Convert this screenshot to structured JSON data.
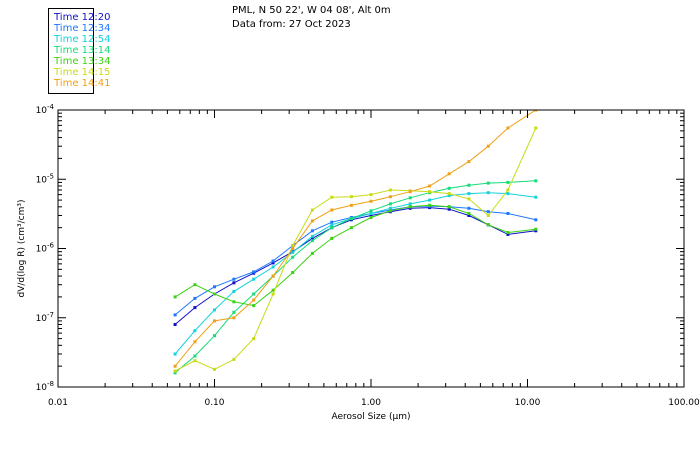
{
  "header": {
    "location": "PML, N 50 22', W 04 08', Alt 0m",
    "date_line": "Data from: 27 Oct 2023"
  },
  "legend": [
    {
      "label": "Time 12:20",
      "color": "#1010c8"
    },
    {
      "label": "Time 12:34",
      "color": "#1e78ff"
    },
    {
      "label": "Time 12:54",
      "color": "#14d2dc"
    },
    {
      "label": "Time 13:14",
      "color": "#14dc78"
    },
    {
      "label": "Time 13:34",
      "color": "#3cd214"
    },
    {
      "label": "Time 14:15",
      "color": "#c8dc14"
    },
    {
      "label": "Time 14:41",
      "color": "#f0a014"
    }
  ],
  "chart_data": {
    "type": "line",
    "xscale": "log",
    "yscale": "log",
    "xlabel": "Aerosol Size (μm)",
    "ylabel": "dV/d(log R) (cm³/cm³)",
    "xlim": [
      0.01,
      100
    ],
    "ylim": [
      1e-08,
      0.0001
    ],
    "x_tick_labels": [
      "0.01",
      "0.10",
      "1.00",
      "10.00",
      "100.00"
    ],
    "x_ticks": [
      0.01,
      0.1,
      1,
      10,
      100
    ],
    "y_ticks": [
      1e-08,
      1e-07,
      1e-06,
      1e-05,
      0.0001
    ],
    "y_tick_mantissa": [
      "10",
      "10",
      "10",
      "10",
      "10"
    ],
    "y_tick_exponent": [
      "-8",
      "-7",
      "-6",
      "-5",
      "-4"
    ],
    "x": [
      0.056,
      0.075,
      0.1,
      0.133,
      0.178,
      0.237,
      0.316,
      0.422,
      0.562,
      0.75,
      1.0,
      1.33,
      1.78,
      2.37,
      3.16,
      4.22,
      5.62,
      7.5,
      11.3
    ],
    "series": [
      {
        "name": "Time 12:20",
        "color": "#1010c8",
        "values": [
          8e-08,
          1.4e-07,
          2.2e-07,
          3.2e-07,
          4.4e-07,
          6.2e-07,
          9e-07,
          1.4e-06,
          2e-06,
          2.6e-06,
          3e-06,
          3.4e-06,
          3.8e-06,
          3.9e-06,
          3.7e-06,
          3e-06,
          2.2e-06,
          1.6e-06,
          1.8e-06
        ]
      },
      {
        "name": "Time 12:34",
        "color": "#1e78ff",
        "values": [
          1.1e-07,
          1.9e-07,
          2.8e-07,
          3.6e-07,
          4.6e-07,
          6.6e-07,
          1.1e-06,
          1.8e-06,
          2.4e-06,
          2.8e-06,
          3.2e-06,
          3.6e-06,
          4e-06,
          4.1e-06,
          4e-06,
          3.8e-06,
          3.4e-06,
          3.2e-06,
          2.6e-06
        ]
      },
      {
        "name": "Time 12:54",
        "color": "#14d2dc",
        "values": [
          3e-08,
          6.5e-08,
          1.3e-07,
          2.4e-07,
          3.6e-07,
          5.4e-07,
          8.8e-07,
          1.5e-06,
          2.2e-06,
          2.7e-06,
          3.2e-06,
          3.8e-06,
          4.4e-06,
          5e-06,
          5.8e-06,
          6.2e-06,
          6.4e-06,
          6.2e-06,
          5.5e-06
        ]
      },
      {
        "name": "Time 13:14",
        "color": "#14dc78",
        "values": [
          1.6e-08,
          2.8e-08,
          5.5e-08,
          1.2e-07,
          2.2e-07,
          4e-07,
          7.5e-07,
          1.3e-06,
          2e-06,
          2.7e-06,
          3.5e-06,
          4.4e-06,
          5.4e-06,
          6.4e-06,
          7.4e-06,
          8.2e-06,
          8.8e-06,
          9e-06,
          9.5e-06
        ]
      },
      {
        "name": "Time 13:34",
        "color": "#3cd214",
        "values": [
          2e-07,
          3e-07,
          2.2e-07,
          1.7e-07,
          1.5e-07,
          2.5e-07,
          4.5e-07,
          8.5e-07,
          1.4e-06,
          2e-06,
          2.8e-06,
          3.5e-06,
          4e-06,
          4.2e-06,
          4e-06,
          3.2e-06,
          2.2e-06,
          1.7e-06,
          1.9e-06
        ]
      },
      {
        "name": "Time 14:15",
        "color": "#c8dc14",
        "values": [
          1.7e-08,
          2.4e-08,
          1.8e-08,
          2.5e-08,
          5e-08,
          2.2e-07,
          1.1e-06,
          3.6e-06,
          5.5e-06,
          5.6e-06,
          6e-06,
          7e-06,
          6.8e-06,
          6.6e-06,
          6.2e-06,
          5.2e-06,
          3e-06,
          7e-06,
          5.5e-05
        ]
      },
      {
        "name": "Time 14:41",
        "color": "#f0a014",
        "values": [
          2e-08,
          4.5e-08,
          9e-08,
          1e-07,
          1.8e-07,
          4e-07,
          1e-06,
          2.5e-06,
          3.6e-06,
          4.2e-06,
          4.8e-06,
          5.6e-06,
          6.6e-06,
          8e-06,
          1.2e-05,
          1.8e-05,
          3e-05,
          5.5e-05,
          0.0001
        ]
      }
    ]
  }
}
